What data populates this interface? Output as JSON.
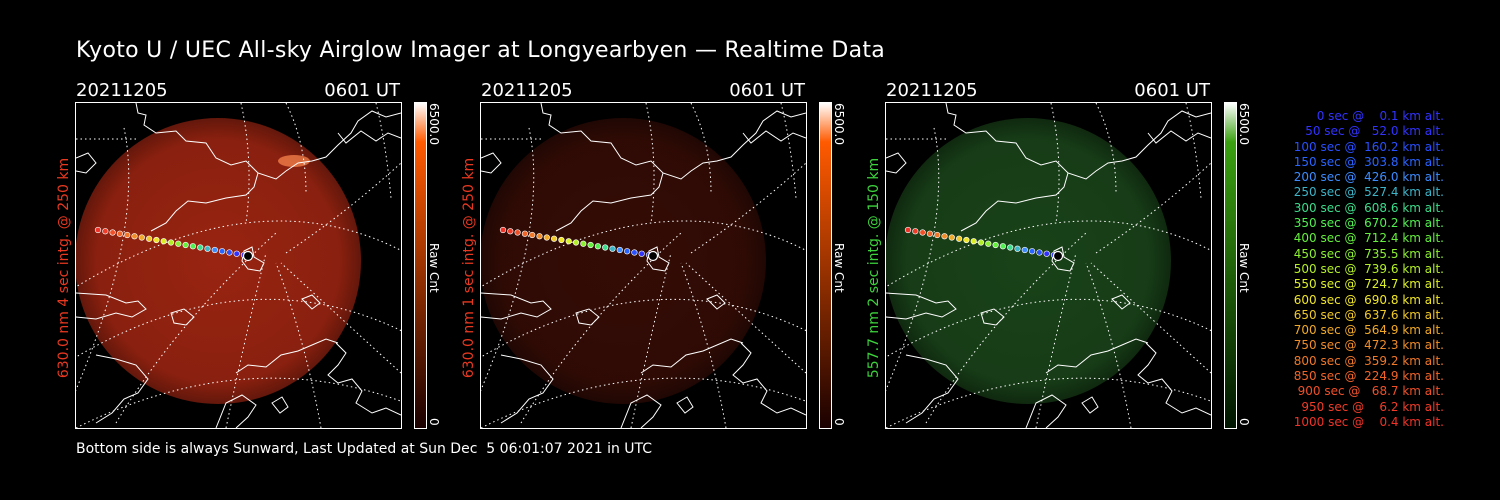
{
  "page": {
    "title": "Kyoto U / UEC All-sky Airglow Imager at Longyearbyen — Realtime Data",
    "footer": "Bottom side is always Sunward, Last Updated at Sun Dec  5 06:01:07 2021 in UTC"
  },
  "panels": [
    {
      "date": "20211205",
      "time": "0601 UT",
      "ylabel": "630.0 nm 4 sec intg. @ 250 km",
      "label_color": "#e83820",
      "cbar_max": "6500.0",
      "cbar_min": "0",
      "cbar_unit": "Raw Cnt",
      "cbar_top_color": "#ffffff",
      "cbar_mid_color": "#ff5a00",
      "cbar_bottom_color": "#1a0000",
      "glow_color": "#b42a14",
      "glow_intensity": 0.85
    },
    {
      "date": "20211205",
      "time": "0601 UT",
      "ylabel": "630.0 nm 1 sec intg. @ 250 km",
      "label_color": "#e83820",
      "cbar_max": "6500.0",
      "cbar_min": "0",
      "cbar_unit": "Raw Cnt",
      "cbar_top_color": "#ffffff",
      "cbar_mid_color": "#ff5a00",
      "cbar_bottom_color": "#1a0000",
      "glow_color": "#3a0d06",
      "glow_intensity": 0.9
    },
    {
      "date": "20211205",
      "time": "0601 UT",
      "ylabel": "557.7 nm 2 sec intg. @ 150 km",
      "label_color": "#3cd23c",
      "cbar_max": "6500.0",
      "cbar_min": "0",
      "cbar_unit": "Raw Cnt",
      "cbar_top_color": "#ffffff",
      "cbar_mid_color": "#3aa010",
      "cbar_bottom_color": "#001400",
      "glow_color": "#1c4a1c",
      "glow_intensity": 0.9
    }
  ],
  "legend": [
    {
      "text": "0 sec @    0.1 km alt.",
      "color": "#3232ff"
    },
    {
      "text": "50 sec @   52.0 km alt.",
      "color": "#3232ff"
    },
    {
      "text": "100 sec @  160.2 km alt.",
      "color": "#2850ff"
    },
    {
      "text": "150 sec @  303.8 km alt.",
      "color": "#2864ff"
    },
    {
      "text": "200 sec @  426.0 km alt.",
      "color": "#3c8cff"
    },
    {
      "text": "250 sec @  527.4 km alt.",
      "color": "#3cb4c8"
    },
    {
      "text": "300 sec @  608.6 km alt.",
      "color": "#3cdc8c"
    },
    {
      "text": "350 sec @  670.2 km alt.",
      "color": "#50f050"
    },
    {
      "text": "400 sec @  712.4 km alt.",
      "color": "#64f03c"
    },
    {
      "text": "450 sec @  735.5 km alt.",
      "color": "#8cf032"
    },
    {
      "text": "500 sec @  739.6 km alt.",
      "color": "#b4f028"
    },
    {
      "text": "550 sec @  724.7 km alt.",
      "color": "#dcf028"
    },
    {
      "text": "600 sec @  690.8 km alt.",
      "color": "#f0e628"
    },
    {
      "text": "650 sec @  637.6 km alt.",
      "color": "#f0c828"
    },
    {
      "text": "700 sec @  564.9 km alt.",
      "color": "#f0aa28"
    },
    {
      "text": "750 sec @  472.3 km alt.",
      "color": "#f08c28"
    },
    {
      "text": "800 sec @  359.2 km alt.",
      "color": "#f07828"
    },
    {
      "text": "850 sec @  224.9 km alt.",
      "color": "#f06428"
    },
    {
      "text": "900 sec @   68.7 km alt.",
      "color": "#f05028"
    },
    {
      "text": "950 sec @    6.2 km alt.",
      "color": "#f03c28"
    },
    {
      "text": "1000 sec @    0.4 km alt.",
      "color": "#f03228"
    }
  ]
}
